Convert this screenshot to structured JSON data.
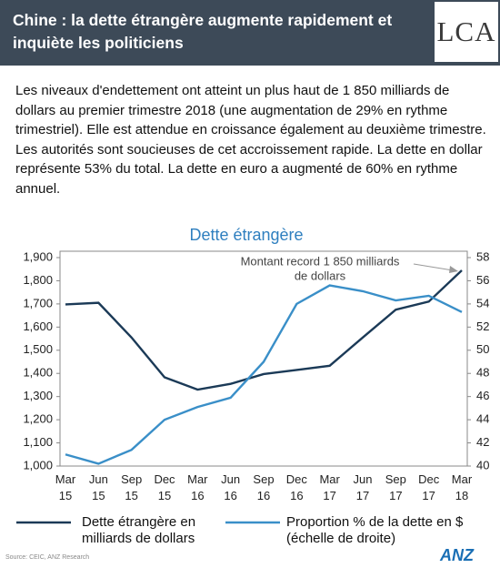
{
  "header": {
    "title": "Chine : la dette étrangère augmente rapidement et inquiète les politiciens",
    "logo": "LCA"
  },
  "paragraph": "Les niveaux d'endettement ont atteint un plus haut de 1 850 milliards de dollars au premier trimestre 2018 (une augmentation de 29% en rythme trimestriel). Elle est attendue en croissance également au deuxième trimestre. Les autorités sont soucieuses de cet accroissement rapide. La dette en dollar représente 53% du total. La dette en euro a augmenté de 60% en rythme annuel.",
  "chart_data": {
    "type": "line",
    "title": "Dette étrangère",
    "categories": [
      "Mar 15",
      "Jun 15",
      "Sep 15",
      "Dec 15",
      "Mar 16",
      "Jun 16",
      "Sep 16",
      "Dec 16",
      "Mar 17",
      "Jun 17",
      "Sep 17",
      "Dec 17",
      "Mar 18"
    ],
    "series": [
      {
        "name": "Dette étrangère en milliards de dollars",
        "color": "#1b3a57",
        "values": [
          1698,
          1705,
          1555,
          1383,
          1330,
          1355,
          1397,
          1415,
          1433,
          1555,
          1675,
          1710,
          1845
        ]
      },
      {
        "name": "Proportion % de la dette en $ (échelle de droite)",
        "color": "#3a8fc8",
        "axis": "y2",
        "values": [
          41.0,
          40.2,
          41.4,
          44.0,
          45.1,
          45.9,
          49.0,
          54.0,
          55.6,
          55.1,
          54.3,
          54.7,
          53.3
        ]
      }
    ],
    "ylim": [
      1000,
      1900
    ],
    "yticks": [
      {
        "value": 1000,
        "label": "1,000"
      },
      {
        "value": 1100,
        "label": "1,100"
      },
      {
        "value": 1200,
        "label": "1,200"
      },
      {
        "value": 1300,
        "label": "1,300"
      },
      {
        "value": 1400,
        "label": "1,400"
      },
      {
        "value": 1500,
        "label": "1,500"
      },
      {
        "value": 1600,
        "label": "1,600"
      },
      {
        "value": 1700,
        "label": "1,700"
      },
      {
        "value": 1800,
        "label": "1,800"
      },
      {
        "value": 1900,
        "label": "1,900"
      }
    ],
    "y2lim": [
      40,
      58
    ],
    "y2ticks": [
      40,
      42,
      44,
      46,
      48,
      50,
      52,
      54,
      56,
      58
    ],
    "annotation": [
      "Montant record 1 850 milliards",
      "de dollars"
    ],
    "source": "Source: CEIC, ANZ Research"
  },
  "footer": {
    "logo": "ANZ"
  }
}
